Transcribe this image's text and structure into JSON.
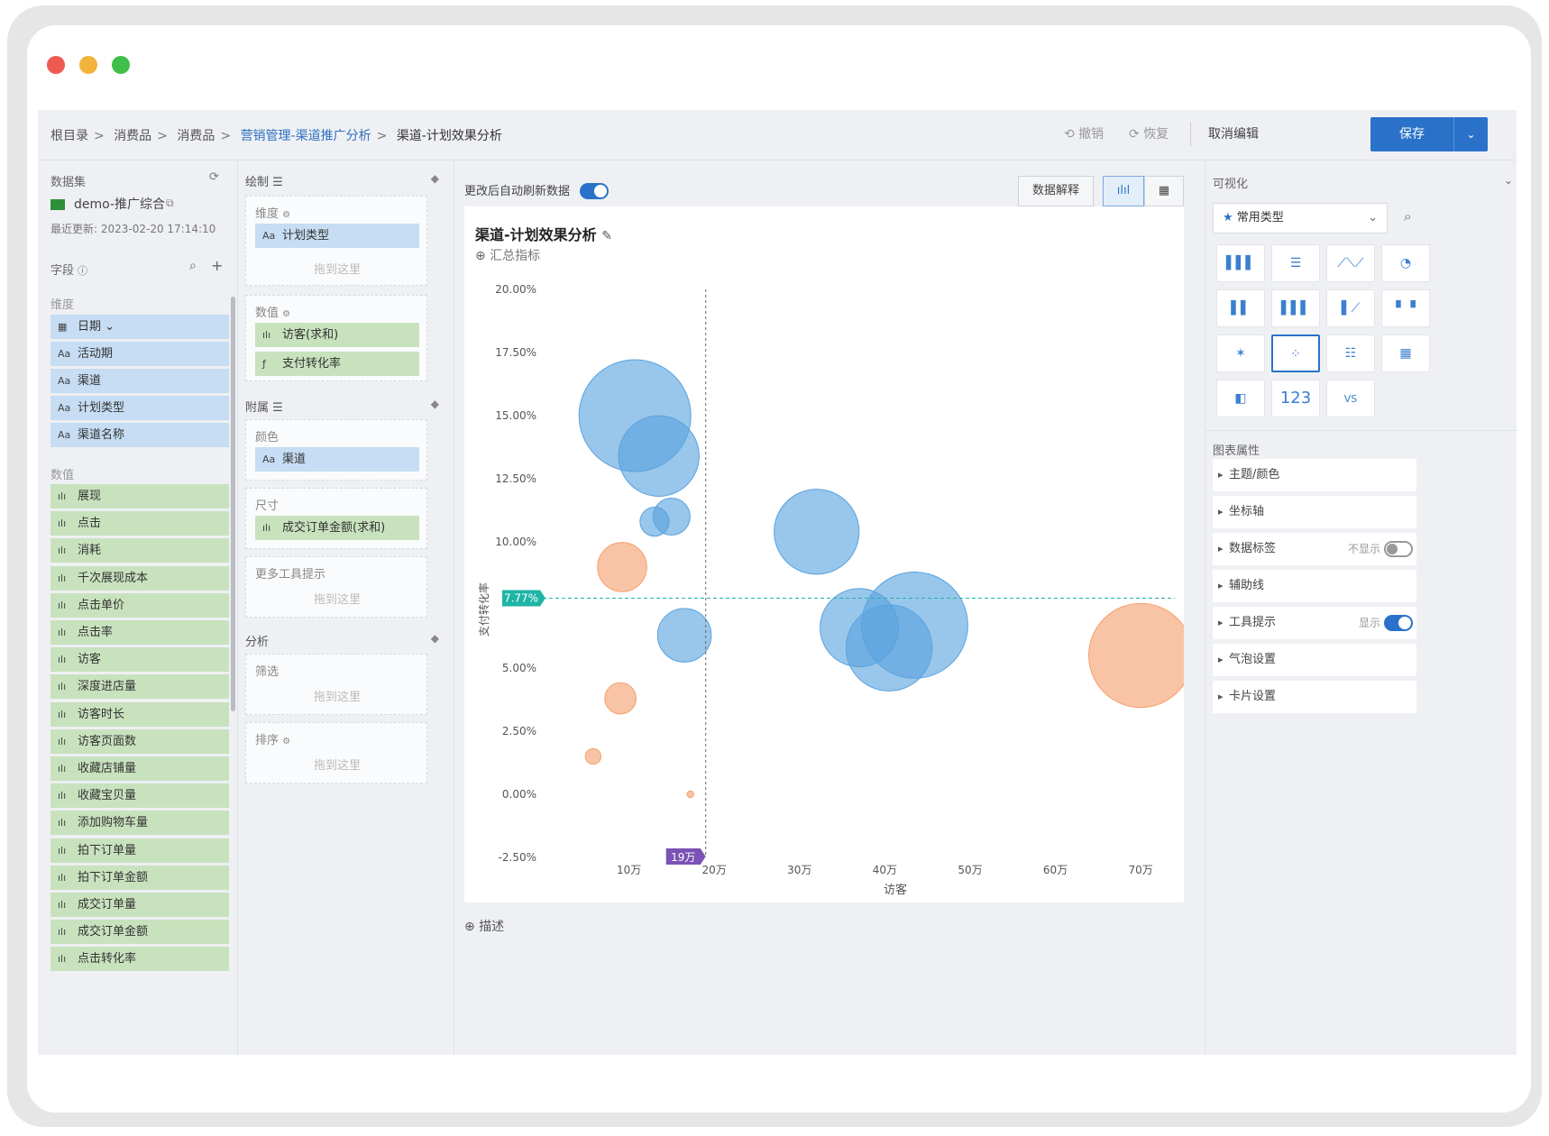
{
  "breadcrumb": [
    "根目录",
    "消费品",
    "消费品",
    "营销管理-渠道推广分析",
    "渠道-计划效果分析"
  ],
  "topbar": {
    "undo": "撤销",
    "redo": "恢复",
    "cancel_edit": "取消编辑",
    "save": "保存"
  },
  "left": {
    "dataset_label": "数据集",
    "dataset_name": "demo-推广综合",
    "last_update": "最近更新: 2023-02-20 17:14:10",
    "fields_label": "字段",
    "dimensions_label": "维度",
    "dimensions": [
      {
        "icon": "date-icon",
        "label": "日期",
        "glyph": "▦"
      },
      {
        "icon": "text-icon",
        "label": "活动期",
        "glyph": "Aa"
      },
      {
        "icon": "text-icon",
        "label": "渠道",
        "glyph": "Aa"
      },
      {
        "icon": "text-icon",
        "label": "计划类型",
        "glyph": "Aa"
      },
      {
        "icon": "text-icon",
        "label": "渠道名称",
        "glyph": "Aa"
      }
    ],
    "measures_label": "数值",
    "measures": [
      "展现",
      "点击",
      "消耗",
      "千次展现成本",
      "点击单价",
      "点击率",
      "访客",
      "深度进店量",
      "访客时长",
      "访客页面数",
      "收藏店铺量",
      "收藏宝贝量",
      "添加购物车量",
      "拍下订单量",
      "拍下订单金额",
      "成交订单量",
      "成交订单金额",
      "点击转化率"
    ]
  },
  "config": {
    "draw_label": "绘制",
    "dim_box_label": "维度",
    "dim_chip": "计划类型",
    "drop_here": "拖到这里",
    "value_box_label": "数值",
    "value_chips": [
      "访客(求和)",
      "支付转化率"
    ],
    "attach_label": "附属",
    "color_label": "颜色",
    "color_chip": "渠道",
    "size_label": "尺寸",
    "size_chip": "成交订单金额(求和)",
    "tooltip_label": "更多工具提示",
    "analysis_label": "分析",
    "filter_label": "筛选",
    "sort_label": "排序"
  },
  "canvas": {
    "auto_refresh": "更改后自动刷新数据",
    "explain_button": "数据解释",
    "chart_title": "渠道-计划效果分析",
    "summary_link": "汇总指标",
    "describe": "描述"
  },
  "right": {
    "viz_label": "可视化",
    "common_types": "常用类型",
    "props_label": "图表属性",
    "props": [
      {
        "label": "主题/颜色",
        "right": ""
      },
      {
        "label": "坐标轴",
        "right": ""
      },
      {
        "label": "数据标签",
        "right": "不显示",
        "toggle": "off"
      },
      {
        "label": "辅助线",
        "right": ""
      },
      {
        "label": "工具提示",
        "right": "显示",
        "toggle": "on"
      },
      {
        "label": "气泡设置",
        "right": ""
      },
      {
        "label": "卡片设置",
        "right": ""
      }
    ],
    "kpi_icon_text": "123",
    "vs_icon_text": "VS"
  },
  "colors": {
    "accent": "#2a72c9",
    "blue_bubble": "#5aa3de",
    "orange_bubble": "#f5a06e",
    "ref_y": "#1fb5a6",
    "ref_x": "#7b52b5"
  },
  "chart_data": {
    "type": "scatter",
    "ylabel": "支付转化率",
    "xlabel": "访客",
    "x_ticks": [
      "10万",
      "20万",
      "30万",
      "40万",
      "50万",
      "60万",
      "70万"
    ],
    "y_ticks": [
      "20.00%",
      "17.50%",
      "15.00%",
      "12.50%",
      "10.00%",
      "5.00%",
      "2.50%",
      "0.00%",
      "-2.50%"
    ],
    "xlim": [
      0,
      74
    ],
    "ylim": [
      -2.5,
      20
    ],
    "ref_y_label": "7.77%",
    "ref_y": 7.77,
    "ref_x_label": "19万",
    "ref_x": 19,
    "points": [
      {
        "x": 10.7,
        "y": 15.0,
        "size": 1.0,
        "group": "blue"
      },
      {
        "x": 13.5,
        "y": 13.4,
        "size": 0.72,
        "group": "blue"
      },
      {
        "x": 15.0,
        "y": 11.0,
        "size": 0.33,
        "group": "blue"
      },
      {
        "x": 13.0,
        "y": 10.8,
        "size": 0.26,
        "group": "blue"
      },
      {
        "x": 32.0,
        "y": 10.4,
        "size": 0.76,
        "group": "blue"
      },
      {
        "x": 16.5,
        "y": 6.3,
        "size": 0.48,
        "group": "blue"
      },
      {
        "x": 43.5,
        "y": 6.7,
        "size": 0.95,
        "group": "blue"
      },
      {
        "x": 37.0,
        "y": 6.6,
        "size": 0.7,
        "group": "blue"
      },
      {
        "x": 40.5,
        "y": 5.8,
        "size": 0.77,
        "group": "blue"
      },
      {
        "x": 9.2,
        "y": 9.0,
        "size": 0.44,
        "group": "orange"
      },
      {
        "x": 9.0,
        "y": 3.8,
        "size": 0.28,
        "group": "orange"
      },
      {
        "x": 5.8,
        "y": 1.5,
        "size": 0.14,
        "group": "orange"
      },
      {
        "x": 17.2,
        "y": 0.0,
        "size": 0.06,
        "group": "orange"
      },
      {
        "x": 70.0,
        "y": 5.5,
        "size": 0.93,
        "group": "orange"
      }
    ]
  }
}
